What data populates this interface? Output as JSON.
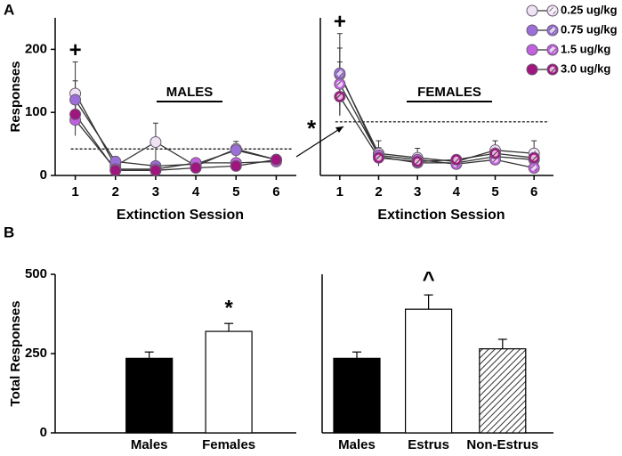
{
  "panel_labels": [
    "A",
    "B"
  ],
  "comparison_label": "*",
  "legend": "upper right",
  "chart_data": [
    {
      "type": "line",
      "ylabel": "Responses",
      "xlabel": "Extinction Session",
      "group_label": "MALES",
      "marker_label": "+",
      "x": [
        1,
        2,
        3,
        4,
        5,
        6
      ],
      "xlim": [
        0.5,
        6.5
      ],
      "xticks": [
        1,
        2,
        3,
        4,
        5,
        6
      ],
      "ylim": [
        0,
        250
      ],
      "yticks": [
        0,
        100,
        200
      ],
      "reference_line": 42,
      "hatch": false,
      "series": [
        {
          "name": "0.25 ug/kg",
          "color": "#efe3f3",
          "values": [
            130,
            15,
            53,
            15,
            42,
            25
          ],
          "errors": [
            50,
            10,
            30,
            8,
            12,
            8
          ]
        },
        {
          "name": "0.75 ug/kg",
          "color": "#9b6fd8",
          "values": [
            120,
            22,
            15,
            18,
            40,
            25
          ],
          "errors": [
            30,
            8,
            6,
            6,
            10,
            6
          ]
        },
        {
          "name": "1.5 ug/kg",
          "color": "#c261e0",
          "values": [
            88,
            10,
            10,
            20,
            20,
            22
          ],
          "errors": [
            25,
            5,
            4,
            6,
            6,
            6
          ]
        },
        {
          "name": "3.0 ug/kg",
          "color": "#a0167f",
          "values": [
            97,
            8,
            8,
            12,
            15,
            25
          ],
          "errors": [
            20,
            4,
            4,
            5,
            5,
            6
          ]
        }
      ]
    },
    {
      "type": "line",
      "xlabel": "Extinction Session",
      "group_label": "FEMALES",
      "marker_label": "+",
      "x": [
        1,
        2,
        3,
        4,
        5,
        6
      ],
      "xlim": [
        0.5,
        6.5
      ],
      "xticks": [
        1,
        2,
        3,
        4,
        5,
        6
      ],
      "ylim": [
        0,
        250
      ],
      "reference_line": 85,
      "hatch": true,
      "series": [
        {
          "name": "0.25 ug/kg",
          "color": "#efe3f3",
          "values": [
            160,
            35,
            28,
            22,
            40,
            35
          ],
          "errors": [
            65,
            20,
            15,
            8,
            15,
            20
          ]
        },
        {
          "name": "0.75 ug/kg",
          "color": "#9b6fd8",
          "values": [
            162,
            30,
            20,
            20,
            30,
            25
          ],
          "errors": [
            40,
            12,
            8,
            6,
            10,
            10
          ]
        },
        {
          "name": "1.5 ug/kg",
          "color": "#c261e0",
          "values": [
            145,
            32,
            25,
            18,
            25,
            12
          ],
          "errors": [
            35,
            12,
            8,
            6,
            8,
            6
          ]
        },
        {
          "name": "3.0 ug/kg",
          "color": "#a0167f",
          "values": [
            125,
            28,
            22,
            25,
            35,
            28
          ],
          "errors": [
            30,
            10,
            8,
            6,
            10,
            8
          ]
        }
      ]
    },
    {
      "type": "bar",
      "ylabel": "Total Responses",
      "categories": [
        "Males",
        "Females"
      ],
      "values": [
        235,
        320
      ],
      "errors": [
        20,
        25
      ],
      "colors": [
        "#000000",
        "#ffffff"
      ],
      "hatch": [
        false,
        false
      ],
      "significance": [
        null,
        "*"
      ],
      "ylim": [
        0,
        500
      ],
      "yticks": [
        0,
        250,
        500
      ]
    },
    {
      "type": "bar",
      "categories": [
        "Males",
        "Estrus",
        "Non-Estrus"
      ],
      "values": [
        235,
        390,
        265
      ],
      "errors": [
        20,
        45,
        30
      ],
      "colors": [
        "#000000",
        "#ffffff",
        "#ffffff"
      ],
      "hatch": [
        false,
        false,
        true
      ],
      "significance": [
        null,
        "^",
        null
      ],
      "ylim": [
        0,
        500
      ]
    }
  ]
}
